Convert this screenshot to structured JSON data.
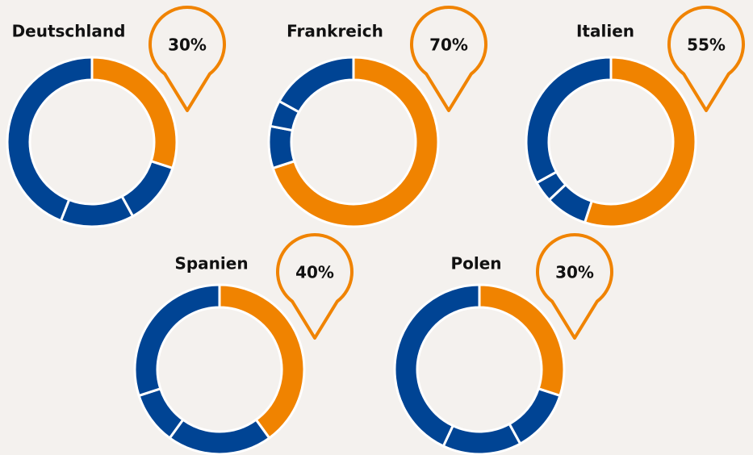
{
  "chart_data": [
    {
      "type": "donut",
      "title": "Deutschland",
      "values": [
        30,
        12,
        14,
        44
      ],
      "value_labels": [
        "30%",
        null,
        null,
        null
      ],
      "colors": [
        "#f08300",
        "#004494",
        "#004494",
        "#004494"
      ]
    },
    {
      "type": "donut",
      "title": "Frankreich",
      "values": [
        70,
        8,
        5,
        17
      ],
      "value_labels": [
        "70%",
        null,
        null,
        null
      ],
      "colors": [
        "#f08300",
        "#004494",
        "#004494",
        "#004494"
      ]
    },
    {
      "type": "donut",
      "title": "Italien",
      "values": [
        55,
        8,
        4,
        33
      ],
      "value_labels": [
        "55%",
        null,
        null,
        null
      ],
      "colors": [
        "#f08300",
        "#004494",
        "#004494",
        "#004494"
      ]
    },
    {
      "type": "donut",
      "title": "Spanien",
      "values": [
        40,
        20,
        10,
        30
      ],
      "value_labels": [
        "40%",
        null,
        null,
        null
      ],
      "colors": [
        "#f08300",
        "#004494",
        "#004494",
        "#004494"
      ]
    },
    {
      "type": "donut",
      "title": "Polen",
      "values": [
        30,
        12,
        15,
        43
      ],
      "value_labels": [
        "30%",
        null,
        null,
        null
      ],
      "colors": [
        "#f08300",
        "#004494",
        "#004494",
        "#004494"
      ]
    }
  ]
}
